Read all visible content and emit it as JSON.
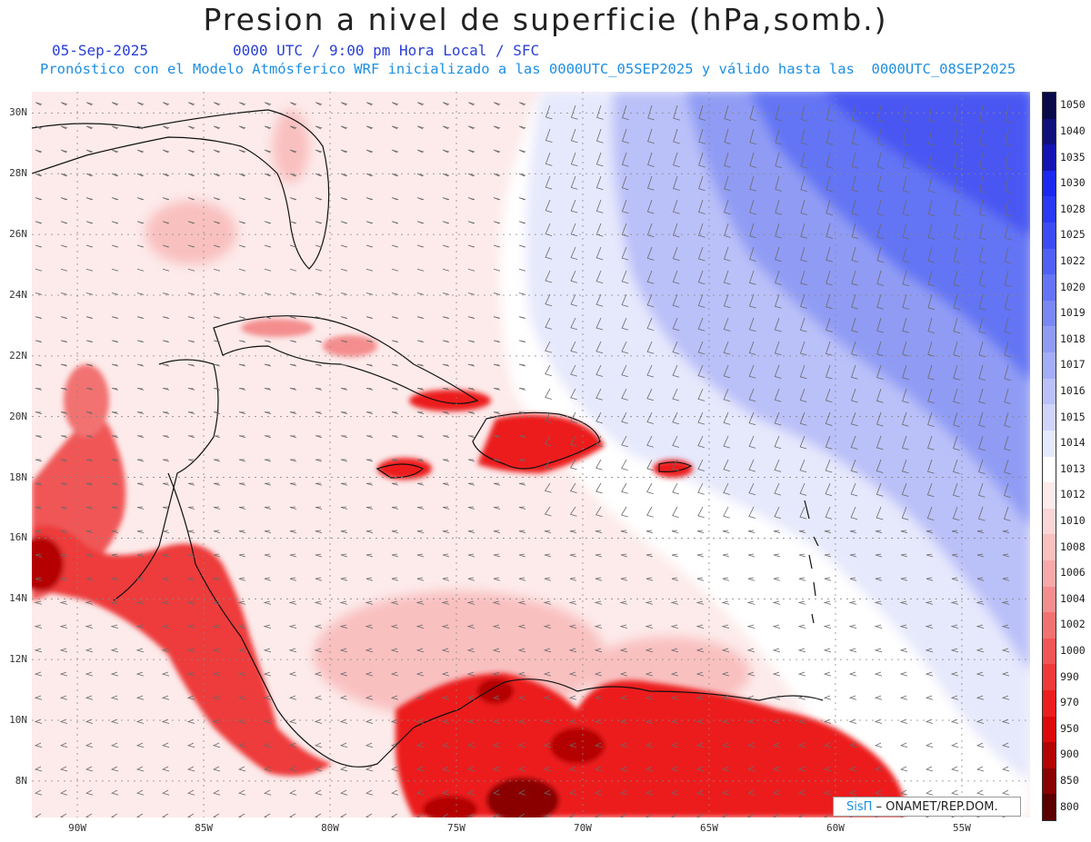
{
  "title": "Presion a nivel de superficie (hPa,somb.)",
  "date": "05-Sep-2025",
  "time_info": "0000 UTC / 9:00 pm Hora Local / SFC",
  "description": "Pronóstico con el Modelo Atmósferico WRF inicializado a las 0000UTC_05SEP2025 y válido hasta las  0000UTC_08SEP2025",
  "lat_labels": [
    "30N",
    "28N",
    "26N",
    "24N",
    "22N",
    "20N",
    "18N",
    "16N",
    "14N",
    "12N",
    "10N",
    "8N"
  ],
  "lat_values": [
    30,
    28,
    26,
    24,
    22,
    20,
    18,
    16,
    14,
    12,
    10,
    8
  ],
  "lon_labels": [
    "90W",
    "85W",
    "80W",
    "75W",
    "70W",
    "65W",
    "60W",
    "55W"
  ],
  "lon_values": [
    -90,
    -85,
    -80,
    -75,
    -70,
    -65,
    -60,
    -55
  ],
  "extent": {
    "lon_min": -91.8,
    "lon_max": -52.3,
    "lat_min": 6.8,
    "lat_max": 30.7
  },
  "colorbar": {
    "levels": [
      "1050",
      "1040",
      "1035",
      "1030",
      "1028",
      "1025",
      "1022",
      "1020",
      "1019",
      "1018",
      "1017",
      "1016",
      "1015",
      "1014",
      "1013",
      "1012",
      "1010",
      "1008",
      "1006",
      "1004",
      "1002",
      "1000",
      "990",
      "970",
      "950",
      "900",
      "850",
      "800"
    ],
    "colors": [
      "#0a0a4a",
      "#10107c",
      "#1414b4",
      "#1c28f0",
      "#2a3af4",
      "#3c4cf4",
      "#5060f4",
      "#6474f4",
      "#7a88f4",
      "#909cf4",
      "#a4aef6",
      "#bac0f8",
      "#d0d4fa",
      "#e6e8fc",
      "#ffffff",
      "#fdeaea",
      "#fbd6d6",
      "#f9c0c0",
      "#f7a8a8",
      "#f48e8e",
      "#f27272",
      "#f05656",
      "#ee3a3a",
      "#ec1e1e",
      "#dc0a0a",
      "#b40404",
      "#8a0202",
      "#5a0000"
    ]
  },
  "credit": {
    "brand": "SisΠ",
    "org": " – ONAMET/REP.DOM."
  }
}
